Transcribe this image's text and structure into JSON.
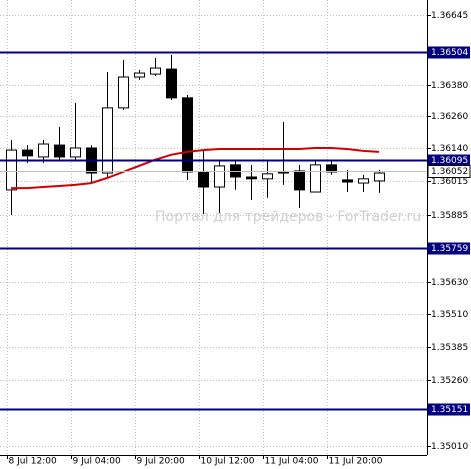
{
  "chart_data": {
    "type": "candlestick",
    "categories": [
      "8 Jul 12:00",
      null,
      null,
      null,
      "9 Jul 04:00",
      null,
      null,
      null,
      "9 Jul 20:00",
      null,
      null,
      null,
      "10 Jul 12:00",
      null,
      null,
      null,
      "11 Jul 04:00",
      null,
      null,
      null,
      "11 Jul 20:00",
      null,
      null,
      null
    ],
    "open": [
      1.35981,
      1.36132,
      1.36106,
      1.36151,
      1.36106,
      1.3614,
      1.36045,
      1.36292,
      1.36409,
      1.3642,
      1.36439,
      1.3633,
      1.36049,
      1.35992,
      1.36076,
      1.3603,
      1.36023,
      1.36045,
      1.36053,
      1.35973,
      1.36076,
      1.36019,
      1.36007,
      1.36015
    ],
    "high": [
      1.3617,
      1.36151,
      1.3617,
      1.3622,
      1.36311,
      1.36151,
      1.36428,
      1.36474,
      1.36436,
      1.36481,
      1.36493,
      1.36341,
      1.36132,
      1.36095,
      1.36095,
      1.36076,
      1.36095,
      1.36239,
      1.36076,
      1.36095,
      1.36095,
      1.36057,
      1.36038,
      1.36057
    ],
    "low": [
      1.35886,
      1.36083,
      1.36083,
      1.36095,
      1.36095,
      1.36007,
      1.36026,
      1.36284,
      1.36398,
      1.36413,
      1.36322,
      1.36019,
      1.3589,
      1.35894,
      1.35981,
      1.35943,
      1.35951,
      1.36,
      1.35913,
      1.35973,
      1.36038,
      1.35973,
      1.35973,
      1.3597
    ],
    "close": [
      1.36132,
      1.3611,
      1.36155,
      1.36106,
      1.3614,
      1.36045,
      1.36292,
      1.36409,
      1.36424,
      1.36443,
      1.3633,
      1.36049,
      1.35992,
      1.36072,
      1.3603,
      1.36023,
      1.36042,
      1.36049,
      1.35981,
      1.36076,
      1.36049,
      1.36011,
      1.36023,
      1.36045
    ],
    "up_color": "#ffffff",
    "down_color": "#000000",
    "ma": {
      "color": "#d40000",
      "values": [
        1.35988,
        1.35988,
        1.35992,
        1.35996,
        1.36,
        1.36007,
        1.36026,
        1.36049,
        1.36072,
        1.36095,
        1.36114,
        1.36125,
        1.36132,
        1.36136,
        1.36136,
        1.36136,
        1.36136,
        1.36136,
        1.36136,
        1.3614,
        1.3614,
        1.36136,
        1.36129,
        1.36125
      ]
    },
    "levels": [
      {
        "value": 1.36504,
        "color": "#000080"
      },
      {
        "value": 1.36095,
        "color": "#000080"
      },
      {
        "value": 1.35759,
        "color": "#000080"
      },
      {
        "value": 1.35151,
        "color": "#000080"
      }
    ],
    "bid": {
      "value": 1.36052,
      "color": "#c0c0c0"
    },
    "ylim": [
      1.34976,
      1.36701
    ],
    "yticks": [
      {
        "value": 1.36645,
        "label": "1.36645"
      },
      {
        "value": 1.3638,
        "label": "1.36380"
      },
      {
        "value": 1.3626,
        "label": "1.36260"
      },
      {
        "value": 1.3614,
        "label": "1.36140"
      },
      {
        "value": 1.36015,
        "label": "1.36015"
      },
      {
        "value": 1.35885,
        "label": "1.35885"
      },
      {
        "value": 1.3563,
        "label": "1.35630"
      },
      {
        "value": 1.3551,
        "label": "1.35510"
      },
      {
        "value": 1.35385,
        "label": "1.35385"
      },
      {
        "value": 1.3526,
        "label": "1.35260"
      },
      {
        "value": 1.3501,
        "label": "1.35010"
      }
    ],
    "grid": true,
    "watermark": "Портал для трейдеров - ForTrader.ru"
  }
}
